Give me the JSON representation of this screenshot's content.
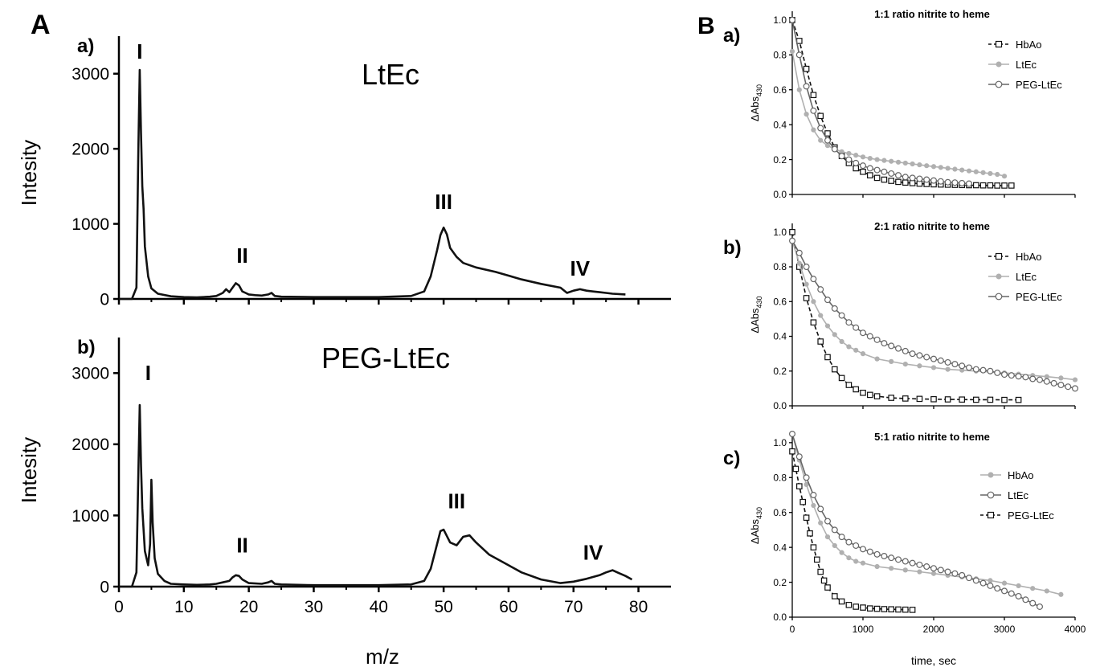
{
  "panelA": {
    "label": "A",
    "xlabel": "m/z",
    "ylabel": "Intesity",
    "xticks": [
      "0",
      "10",
      "20",
      "30",
      "40",
      "50",
      "60",
      "70",
      "80"
    ],
    "yticks": [
      "0",
      "1000",
      "2000",
      "3000"
    ]
  },
  "panelB": {
    "label": "B",
    "xlabel": "time, sec",
    "ylabel": "ΔAbs",
    "ylabel_sub": "430",
    "xticks": [
      "0",
      "1000",
      "2000",
      "3000",
      "4000"
    ],
    "yticks": [
      "0.0",
      "0.2",
      "0.4",
      "0.6",
      "0.8",
      "1.0"
    ]
  },
  "colors": {
    "black": "#111111",
    "lightgray": "#b0b0b0",
    "darkgray": "#666666"
  },
  "chart_data": [
    {
      "id": "A-a",
      "type": "line",
      "sublabel": "a)",
      "title": "LtEc",
      "xlim": [
        0,
        85
      ],
      "ylim": [
        0,
        3500
      ],
      "peak_labels": [
        {
          "text": "I",
          "x": 3.2,
          "y": 3200
        },
        {
          "text": "II",
          "x": 19,
          "y": 480
        },
        {
          "text": "III",
          "x": 50,
          "y": 1200
        },
        {
          "text": "IV",
          "x": 71,
          "y": 310
        }
      ],
      "series": [
        {
          "color": "black",
          "x": [
            0,
            2,
            2.7,
            3,
            3.2,
            3.4,
            3.6,
            3.8,
            4,
            4.5,
            5,
            6,
            8,
            10,
            12,
            14,
            15,
            16,
            16.5,
            17,
            17.5,
            18,
            18.5,
            19,
            19.5,
            20,
            21,
            22,
            23,
            23.5,
            24,
            25,
            30,
            35,
            40,
            45,
            47,
            48,
            49,
            49.5,
            50,
            50.5,
            51,
            52,
            53,
            55,
            58,
            60,
            62,
            65,
            68,
            69,
            70,
            71,
            72,
            73,
            74,
            75,
            76,
            78
          ],
          "y": [
            0,
            0,
            150,
            2000,
            3050,
            2200,
            1500,
            1200,
            700,
            300,
            140,
            70,
            35,
            25,
            20,
            30,
            40,
            80,
            130,
            90,
            150,
            210,
            180,
            100,
            80,
            60,
            50,
            45,
            60,
            80,
            40,
            30,
            25,
            25,
            25,
            40,
            100,
            300,
            650,
            850,
            950,
            860,
            680,
            560,
            480,
            420,
            360,
            310,
            260,
            200,
            150,
            80,
            110,
            130,
            110,
            100,
            90,
            80,
            70,
            60
          ]
        }
      ]
    },
    {
      "id": "A-b",
      "type": "line",
      "sublabel": "b)",
      "title": "PEG-LtEc",
      "xlim": [
        0,
        85
      ],
      "ylim": [
        0,
        3500
      ],
      "peak_labels": [
        {
          "text": "I",
          "x": 4.5,
          "y": 2900
        },
        {
          "text": "II",
          "x": 19,
          "y": 480
        },
        {
          "text": "III",
          "x": 52,
          "y": 1100
        },
        {
          "text": "IV",
          "x": 73,
          "y": 380
        }
      ],
      "series": [
        {
          "color": "black",
          "x": [
            0,
            2,
            2.7,
            3,
            3.2,
            3.4,
            3.6,
            3.8,
            4,
            4.5,
            4.8,
            5,
            5.2,
            5.5,
            6,
            7,
            8,
            10,
            12,
            14,
            15,
            16,
            17,
            17.5,
            18,
            18.5,
            19,
            20,
            22,
            23,
            23.5,
            24,
            25,
            30,
            35,
            40,
            45,
            47,
            48,
            49,
            49.5,
            50,
            51,
            52,
            53,
            54,
            55,
            57,
            60,
            62,
            65,
            68,
            70,
            72,
            74,
            75,
            76,
            77,
            78,
            79
          ],
          "y": [
            0,
            0,
            200,
            1600,
            2550,
            1700,
            1100,
            800,
            500,
            300,
            600,
            1500,
            900,
            400,
            180,
            80,
            40,
            30,
            25,
            30,
            40,
            60,
            80,
            130,
            160,
            150,
            100,
            50,
            40,
            60,
            80,
            40,
            30,
            20,
            20,
            20,
            30,
            80,
            250,
            600,
            780,
            800,
            620,
            580,
            700,
            720,
            620,
            450,
            300,
            200,
            100,
            50,
            70,
            110,
            160,
            200,
            230,
            190,
            150,
            100
          ]
        }
      ]
    },
    {
      "id": "B-a",
      "type": "scatter",
      "sublabel": "a)",
      "title": "1:1 ratio nitrite to heme",
      "xlim": [
        0,
        4000
      ],
      "ylim": [
        0,
        1.05
      ],
      "legend": [
        {
          "name": "HbAo",
          "color": "black",
          "marker": "square",
          "dash": true
        },
        {
          "name": "LtEc",
          "color": "lightgray",
          "marker": "dot",
          "dash": false
        },
        {
          "name": "PEG-LtEc",
          "color": "darkgray",
          "marker": "circle",
          "dash": false
        }
      ],
      "series": [
        {
          "name": "HbAo",
          "color": "black",
          "marker": "square",
          "dash": true,
          "x": [
            0,
            100,
            200,
            300,
            400,
            500,
            600,
            700,
            800,
            900,
            1000,
            1100,
            1200,
            1300,
            1400,
            1500,
            1600,
            1700,
            1800,
            1900,
            2000,
            2100,
            2200,
            2300,
            2400,
            2500,
            2600,
            2700,
            2800,
            2900,
            3000,
            3100
          ],
          "y": [
            1.0,
            0.88,
            0.72,
            0.57,
            0.45,
            0.35,
            0.27,
            0.22,
            0.18,
            0.15,
            0.13,
            0.11,
            0.095,
            0.085,
            0.078,
            0.072,
            0.068,
            0.065,
            0.062,
            0.06,
            0.058,
            0.057,
            0.056,
            0.055,
            0.054,
            0.053,
            0.053,
            0.052,
            0.052,
            0.051,
            0.051,
            0.051
          ]
        },
        {
          "name": "LtEc",
          "color": "lightgray",
          "marker": "dot",
          "dash": false,
          "x": [
            0,
            100,
            200,
            300,
            400,
            500,
            600,
            700,
            800,
            900,
            1000,
            1100,
            1200,
            1300,
            1400,
            1500,
            1600,
            1700,
            1800,
            1900,
            2000,
            2100,
            2200,
            2300,
            2400,
            2500,
            2600,
            2700,
            2800,
            2900,
            3000
          ],
          "y": [
            0.82,
            0.6,
            0.46,
            0.37,
            0.31,
            0.28,
            0.26,
            0.245,
            0.235,
            0.225,
            0.215,
            0.207,
            0.2,
            0.195,
            0.19,
            0.185,
            0.18,
            0.175,
            0.17,
            0.165,
            0.16,
            0.155,
            0.15,
            0.145,
            0.14,
            0.135,
            0.13,
            0.125,
            0.12,
            0.115,
            0.105
          ]
        },
        {
          "name": "PEG-LtEc",
          "color": "darkgray",
          "marker": "circle",
          "dash": false,
          "x": [
            0,
            100,
            200,
            300,
            400,
            500,
            600,
            700,
            800,
            900,
            1000,
            1100,
            1200,
            1300,
            1400,
            1500,
            1600,
            1700,
            1800,
            1900,
            2000,
            2100,
            2200,
            2300,
            2400,
            2500
          ],
          "y": [
            1.0,
            0.8,
            0.62,
            0.48,
            0.38,
            0.31,
            0.26,
            0.22,
            0.2,
            0.18,
            0.165,
            0.15,
            0.14,
            0.13,
            0.12,
            0.11,
            0.1,
            0.095,
            0.09,
            0.085,
            0.08,
            0.075,
            0.07,
            0.068,
            0.065,
            0.062
          ]
        }
      ]
    },
    {
      "id": "B-b",
      "type": "scatter",
      "sublabel": "b)",
      "title": "2:1 ratio nitrite to heme",
      "xlim": [
        0,
        4000
      ],
      "ylim": [
        0,
        1.05
      ],
      "legend": [
        {
          "name": "HbAo",
          "color": "black",
          "marker": "square",
          "dash": true
        },
        {
          "name": "LtEc",
          "color": "lightgray",
          "marker": "dot",
          "dash": false
        },
        {
          "name": "PEG-LtEc",
          "color": "darkgray",
          "marker": "circle",
          "dash": false
        }
      ],
      "series": [
        {
          "name": "HbAo",
          "color": "black",
          "marker": "square",
          "dash": true,
          "x": [
            0,
            100,
            200,
            300,
            400,
            500,
            600,
            700,
            800,
            900,
            1000,
            1100,
            1200,
            1400,
            1600,
            1800,
            2000,
            2200,
            2400,
            2600,
            2800,
            3000,
            3200
          ],
          "y": [
            1.0,
            0.8,
            0.62,
            0.48,
            0.37,
            0.28,
            0.21,
            0.16,
            0.12,
            0.095,
            0.075,
            0.063,
            0.055,
            0.046,
            0.042,
            0.04,
            0.038,
            0.037,
            0.036,
            0.035,
            0.035,
            0.034,
            0.034
          ]
        },
        {
          "name": "LtEc",
          "color": "lightgray",
          "marker": "dot",
          "dash": false,
          "x": [
            0,
            100,
            200,
            300,
            400,
            500,
            600,
            700,
            800,
            900,
            1000,
            1200,
            1400,
            1600,
            1800,
            2000,
            2200,
            2400,
            2600,
            2800,
            3000,
            3200,
            3400,
            3600,
            3800,
            4000
          ],
          "y": [
            0.95,
            0.82,
            0.7,
            0.6,
            0.52,
            0.46,
            0.41,
            0.37,
            0.34,
            0.32,
            0.3,
            0.27,
            0.255,
            0.24,
            0.23,
            0.22,
            0.21,
            0.205,
            0.2,
            0.195,
            0.19,
            0.182,
            0.175,
            0.168,
            0.16,
            0.15
          ]
        },
        {
          "name": "PEG-LtEc",
          "color": "darkgray",
          "marker": "circle",
          "dash": false,
          "x": [
            0,
            100,
            200,
            300,
            400,
            500,
            600,
            700,
            800,
            900,
            1000,
            1100,
            1200,
            1300,
            1400,
            1500,
            1600,
            1700,
            1800,
            1900,
            2000,
            2100,
            2200,
            2300,
            2400,
            2500,
            2600,
            2700,
            2800,
            2900,
            3000,
            3100,
            3200,
            3300,
            3400,
            3500,
            3600,
            3700,
            3800,
            3900,
            4000
          ],
          "y": [
            0.95,
            0.88,
            0.8,
            0.73,
            0.67,
            0.61,
            0.56,
            0.52,
            0.48,
            0.45,
            0.42,
            0.4,
            0.38,
            0.36,
            0.345,
            0.33,
            0.315,
            0.3,
            0.29,
            0.28,
            0.27,
            0.26,
            0.25,
            0.24,
            0.23,
            0.22,
            0.21,
            0.205,
            0.2,
            0.19,
            0.18,
            0.175,
            0.17,
            0.165,
            0.155,
            0.15,
            0.14,
            0.13,
            0.12,
            0.11,
            0.1
          ]
        }
      ]
    },
    {
      "id": "B-c",
      "type": "scatter",
      "sublabel": "c)",
      "title": "5:1 ratio nitrite to heme",
      "xlim": [
        0,
        4000
      ],
      "ylim": [
        0,
        1.05
      ],
      "legend": [
        {
          "name": "HbAo",
          "color": "lightgray",
          "marker": "dot",
          "dash": false
        },
        {
          "name": "LtEc",
          "color": "darkgray",
          "marker": "circle",
          "dash": false
        },
        {
          "name": "PEG-LtEc",
          "color": "black",
          "marker": "square",
          "dash": true
        }
      ],
      "series": [
        {
          "name": "HbAo",
          "color": "lightgray",
          "marker": "dot",
          "dash": false,
          "x": [
            0,
            100,
            200,
            300,
            400,
            500,
            600,
            700,
            800,
            900,
            1000,
            1200,
            1400,
            1600,
            1800,
            2000,
            2200,
            2400,
            2600,
            2800,
            3000,
            3200,
            3400,
            3600,
            3800
          ],
          "y": [
            1.05,
            0.9,
            0.76,
            0.64,
            0.54,
            0.46,
            0.41,
            0.37,
            0.34,
            0.32,
            0.31,
            0.29,
            0.28,
            0.27,
            0.26,
            0.25,
            0.24,
            0.23,
            0.22,
            0.21,
            0.195,
            0.18,
            0.165,
            0.15,
            0.13
          ]
        },
        {
          "name": "LtEc",
          "color": "darkgray",
          "marker": "circle",
          "dash": false,
          "x": [
            0,
            100,
            200,
            300,
            400,
            500,
            600,
            700,
            800,
            900,
            1000,
            1100,
            1200,
            1300,
            1400,
            1500,
            1600,
            1700,
            1800,
            1900,
            2000,
            2100,
            2200,
            2300,
            2400,
            2500,
            2600,
            2700,
            2800,
            2900,
            3000,
            3100,
            3200,
            3300,
            3400,
            3500
          ],
          "y": [
            1.05,
            0.92,
            0.8,
            0.7,
            0.62,
            0.55,
            0.5,
            0.46,
            0.43,
            0.41,
            0.39,
            0.375,
            0.36,
            0.35,
            0.34,
            0.33,
            0.32,
            0.31,
            0.3,
            0.29,
            0.28,
            0.27,
            0.26,
            0.25,
            0.24,
            0.225,
            0.21,
            0.195,
            0.18,
            0.165,
            0.15,
            0.135,
            0.12,
            0.1,
            0.08,
            0.06
          ]
        },
        {
          "name": "PEG-LtEc",
          "color": "black",
          "marker": "square",
          "dash": true,
          "x": [
            0,
            50,
            100,
            150,
            200,
            250,
            300,
            350,
            400,
            450,
            500,
            600,
            700,
            800,
            900,
            1000,
            1100,
            1200,
            1300,
            1400,
            1500,
            1600,
            1700
          ],
          "y": [
            0.95,
            0.85,
            0.75,
            0.66,
            0.57,
            0.48,
            0.4,
            0.33,
            0.26,
            0.21,
            0.17,
            0.12,
            0.09,
            0.07,
            0.06,
            0.055,
            0.05,
            0.048,
            0.046,
            0.045,
            0.044,
            0.043,
            0.042
          ]
        }
      ]
    }
  ]
}
